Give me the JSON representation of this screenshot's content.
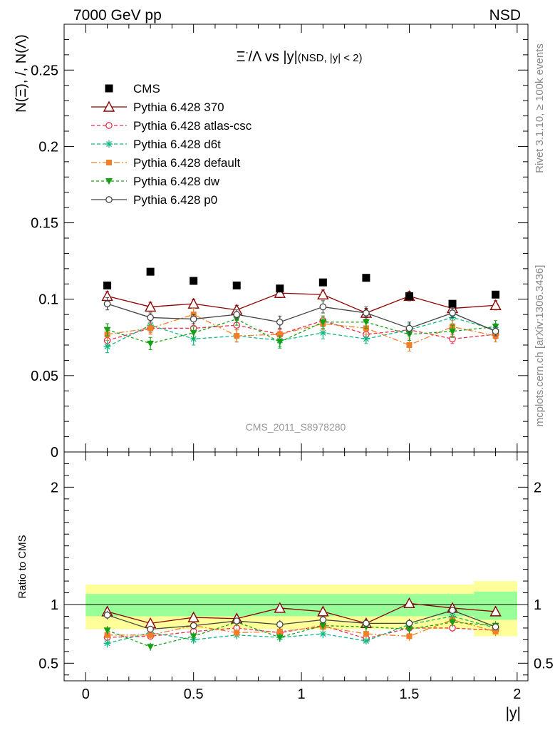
{
  "header": {
    "left": "7000 GeV pp",
    "right": "NSD"
  },
  "side": {
    "top": "Rivet 3.1.10, ≥ 100k events",
    "bottom": "mcplots.cern.ch [arXiv:1306.3436]"
  },
  "watermark": "CMS_2011_S8978280",
  "chart_data": {
    "type": "scatter",
    "title": {
      "xi": "Ξ",
      "sup": "-",
      "rest": "/Λ vs |y|",
      "small": "(NSD, |y| < 2)"
    },
    "ylabel_upper": "N(Ξ̄), /, N(Λ)",
    "ylabel_ratio": "Ratio to CMS",
    "xlabel": "|y|",
    "xlim": [
      -0.1,
      2.05
    ],
    "ylim": [
      0,
      0.28
    ],
    "ratio_ylim": [
      0.35,
      2.3
    ],
    "upper_ticks": [
      "0",
      "0.05",
      "0.1",
      "0.15",
      "0.2",
      "0.25"
    ],
    "ratio_ticks": [
      "0.5",
      "1",
      "2"
    ],
    "x_ticks": [
      "0",
      "0.5",
      "1",
      "1.5",
      "2"
    ],
    "x": [
      0.1,
      0.3,
      0.5,
      0.7,
      0.9,
      1.1,
      1.3,
      1.5,
      1.7,
      1.9
    ],
    "data": {
      "name": "CMS",
      "values": [
        0.109,
        0.118,
        0.112,
        0.109,
        0.107,
        0.111,
        0.114,
        0.102,
        0.097,
        0.103
      ]
    },
    "bands": {
      "inner": [
        {
          "x0": 0.0,
          "x1": 1.8,
          "lo": 0.9,
          "hi": 1.09
        },
        {
          "x0": 1.8,
          "x1": 2.0,
          "lo": 0.87,
          "hi": 1.11
        }
      ],
      "outer": [
        {
          "x0": 0.0,
          "x1": 1.8,
          "lo": 0.79,
          "hi": 1.17
        },
        {
          "x0": 1.8,
          "x1": 2.0,
          "lo": 0.73,
          "hi": 1.2
        }
      ]
    },
    "series": [
      {
        "name": "Pythia 6.428 370",
        "color": "#8b0000",
        "dash": "",
        "marker": "triangle-open",
        "values": [
          0.102,
          0.095,
          0.097,
          0.093,
          0.104,
          0.103,
          0.091,
          0.102,
          0.094,
          0.096
        ],
        "err": [
          0.003,
          0.003,
          0.003,
          0.003,
          0.003,
          0.003,
          0.003,
          0.003,
          0.003,
          0.003
        ],
        "ratio": [
          0.94,
          0.84,
          0.89,
          0.88,
          0.97,
          0.94,
          0.84,
          1.01,
          0.97,
          0.94
        ]
      },
      {
        "name": "Pythia 6.428 atlas-csc",
        "color": "#e8304a",
        "dash": "5,3",
        "marker": "circle-open",
        "values": [
          0.073,
          0.081,
          0.081,
          0.083,
          0.077,
          0.086,
          0.077,
          0.08,
          0.074,
          0.077
        ],
        "err": [
          0.003,
          0.003,
          0.003,
          0.003,
          0.003,
          0.003,
          0.003,
          0.003,
          0.003,
          0.003
        ],
        "ratio": [
          0.72,
          0.73,
          0.77,
          0.8,
          0.76,
          0.82,
          0.71,
          0.8,
          0.8,
          0.78
        ]
      },
      {
        "name": "Pythia 6.428 d6t",
        "color": "#10b882",
        "dash": "5,3",
        "marker": "asterisk",
        "values": [
          0.069,
          0.083,
          0.074,
          0.076,
          0.073,
          0.078,
          0.074,
          0.08,
          0.088,
          0.08
        ],
        "err": [
          0.004,
          0.004,
          0.004,
          0.004,
          0.004,
          0.004,
          0.003,
          0.004,
          0.004,
          0.004
        ],
        "ratio": [
          0.67,
          0.76,
          0.7,
          0.74,
          0.72,
          0.75,
          0.69,
          0.83,
          0.9,
          0.8
        ]
      },
      {
        "name": "Pythia 6.428 default",
        "color": "#f07f28",
        "dash": "8,3,2,3",
        "marker": "square",
        "values": [
          0.077,
          0.081,
          0.09,
          0.076,
          0.077,
          0.084,
          0.081,
          0.07,
          0.082,
          0.076
        ],
        "err": [
          0.004,
          0.004,
          0.004,
          0.004,
          0.004,
          0.004,
          0.004,
          0.004,
          0.004,
          0.004
        ],
        "ratio": [
          0.74,
          0.74,
          0.82,
          0.76,
          0.77,
          0.81,
          0.75,
          0.73,
          0.87,
          0.77
        ]
      },
      {
        "name": "Pythia 6.428 dw",
        "color": "#16a016",
        "dash": "4,3",
        "marker": "triangle-down",
        "values": [
          0.08,
          0.071,
          0.078,
          0.087,
          0.072,
          0.085,
          0.085,
          0.077,
          0.079,
          0.082
        ],
        "err": [
          0.004,
          0.004,
          0.004,
          0.004,
          0.004,
          0.004,
          0.004,
          0.004,
          0.004,
          0.004
        ],
        "ratio": [
          0.78,
          0.64,
          0.73,
          0.85,
          0.72,
          0.82,
          0.81,
          0.79,
          0.85,
          0.82
        ]
      },
      {
        "name": "Pythia 6.428 p0",
        "color": "#444444",
        "dash": "",
        "marker": "circle-open",
        "values": [
          0.097,
          0.088,
          0.087,
          0.09,
          0.085,
          0.095,
          0.091,
          0.081,
          0.091,
          0.079
        ],
        "err": [
          0.004,
          0.003,
          0.003,
          0.003,
          0.004,
          0.004,
          0.004,
          0.004,
          0.003,
          0.003
        ],
        "ratio": [
          0.91,
          0.79,
          0.82,
          0.86,
          0.83,
          0.87,
          0.84,
          0.84,
          0.95,
          0.81
        ]
      }
    ]
  }
}
